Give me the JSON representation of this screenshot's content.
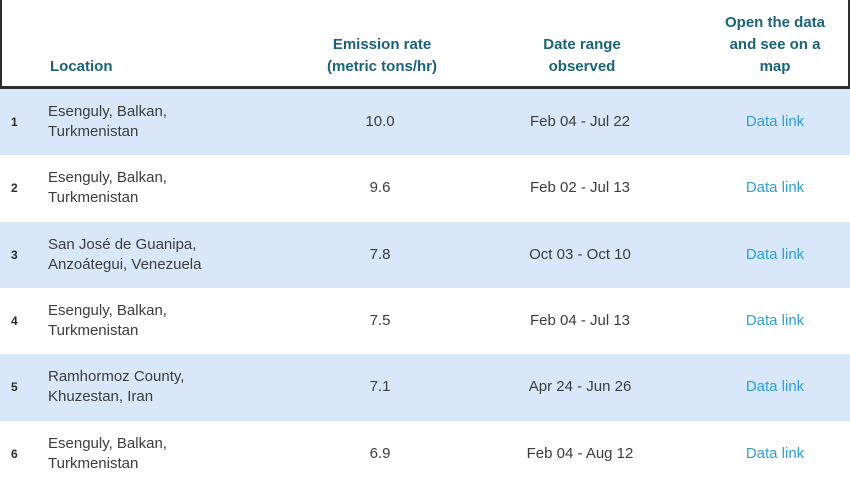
{
  "table": {
    "columns": [
      {
        "key": "rank",
        "label": ""
      },
      {
        "key": "location",
        "label": "Location"
      },
      {
        "key": "rate",
        "label": "Emission rate (metric tons/hr)"
      },
      {
        "key": "date",
        "label": "Date range observed"
      },
      {
        "key": "link",
        "label": "Open the data and see on a map"
      }
    ],
    "rows": [
      {
        "rank": "1",
        "location": "Esenguly, Balkan, Turkmenistan",
        "emission_rate": "10.0",
        "date_range": "Feb 04 - Jul 22",
        "link_label": "Data link"
      },
      {
        "rank": "2",
        "location": "Esenguly, Balkan, Turkmenistan",
        "emission_rate": "9.6",
        "date_range": "Feb 02 - Jul 13",
        "link_label": "Data link"
      },
      {
        "rank": "3",
        "location": "San José de Guanipa, Anzoátegui, Venezuela",
        "emission_rate": "7.8",
        "date_range": "Oct 03 - Oct 10",
        "link_label": "Data link"
      },
      {
        "rank": "4",
        "location": "Esenguly, Balkan, Turkmenistan",
        "emission_rate": "7.5",
        "date_range": "Feb 04 - Jul 13",
        "link_label": "Data link"
      },
      {
        "rank": "5",
        "location": "Ramhormoz County, Khuzestan, Iran",
        "emission_rate": "7.1",
        "date_range": "Apr 24 - Jun 26",
        "link_label": "Data link"
      },
      {
        "rank": "6",
        "location": "Esenguly, Balkan, Turkmenistan",
        "emission_rate": "6.9",
        "date_range": "Feb 04 - Aug 12",
        "link_label": "Data link"
      }
    ]
  },
  "colors": {
    "header_text": "#1b6377",
    "link_text": "#2e9fd4",
    "row_stripe": "#d8e8fa",
    "body_text": "#3c3c3c",
    "header_border": "#2d2d2d"
  }
}
